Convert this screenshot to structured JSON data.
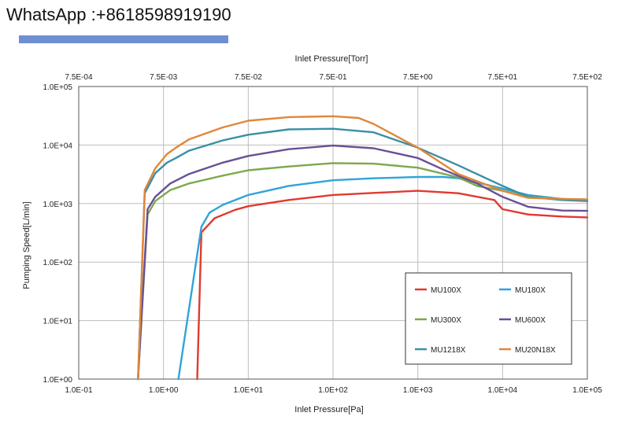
{
  "header": {
    "whatsapp_text": "WhatsApp :+8618598919190"
  },
  "chart_data": {
    "type": "line",
    "title": "",
    "top_axis_label": "Inlet Pressure[Torr]",
    "xlabel": "Inlet Pressure[Pa]",
    "ylabel": "Pumping Speed[L/min]",
    "x_scale": "log",
    "y_scale": "log",
    "xlim": [
      0.1,
      100000
    ],
    "ylim": [
      1,
      100000
    ],
    "grid": true,
    "legend_position": "bottom-right",
    "x_tick_labels": [
      "1.0E-01",
      "1.0E+00",
      "1.0E+01",
      "1.0E+02",
      "1.0E+03",
      "1.0E+04",
      "1.0E+05"
    ],
    "top_tick_labels": [
      "7.5E-04",
      "7.5E-03",
      "7.5E-02",
      "7.5E-01",
      "7.5E+00",
      "7.5E+01",
      "7.5E+02"
    ],
    "y_tick_labels": [
      "1.0E+00",
      "1.0E+01",
      "1.0E+02",
      "1.0E+03",
      "1.0E+04",
      "1.0E+05"
    ],
    "x_ticks": [
      0.1,
      1,
      10,
      100,
      1000,
      10000,
      100000
    ],
    "y_ticks": [
      1,
      10,
      100,
      1000,
      10000,
      100000
    ],
    "series": [
      {
        "name": "MU100X",
        "color": "#e03a2f",
        "x": [
          2.5,
          2.8,
          4,
          7,
          10,
          30,
          100,
          300,
          1000,
          3000,
          8000,
          10000,
          20000,
          50000,
          100000
        ],
        "y": [
          1,
          320,
          560,
          780,
          900,
          1150,
          1400,
          1520,
          1650,
          1500,
          1150,
          800,
          650,
          600,
          580
        ]
      },
      {
        "name": "MU180X",
        "color": "#2fa4d8",
        "x": [
          1.5,
          2.8,
          3.5,
          5,
          10,
          30,
          100,
          300,
          1000,
          2000,
          3000,
          5000,
          10000,
          20000,
          50000,
          100000
        ],
        "y": [
          1,
          400,
          700,
          950,
          1400,
          2000,
          2500,
          2700,
          2850,
          2850,
          2700,
          2300,
          1800,
          1400,
          1200,
          1150
        ]
      },
      {
        "name": "MU300X",
        "color": "#7da84b",
        "x": [
          0.5,
          0.65,
          0.8,
          1.2,
          2,
          5,
          10,
          30,
          100,
          300,
          1000,
          3000,
          5000,
          10000,
          20000,
          50000,
          100000
        ],
        "y": [
          1,
          650,
          1100,
          1700,
          2200,
          3000,
          3700,
          4300,
          4900,
          4800,
          4100,
          2800,
          2000,
          1650,
          1300,
          1200,
          1150
        ]
      },
      {
        "name": "MU600X",
        "color": "#6a4f96",
        "x": [
          0.5,
          0.65,
          0.8,
          1.2,
          2,
          5,
          10,
          30,
          100,
          300,
          1000,
          2000,
          5000,
          10000,
          20000,
          50000,
          100000
        ],
        "y": [
          1,
          800,
          1300,
          2200,
          3200,
          5000,
          6500,
          8500,
          9800,
          8800,
          6000,
          3800,
          2200,
          1300,
          880,
          760,
          750
        ]
      },
      {
        "name": "MU1218X",
        "color": "#3a8fa6",
        "x": [
          0.5,
          0.6,
          0.8,
          1.1,
          1.4,
          2,
          5,
          10,
          30,
          100,
          300,
          1000,
          3000,
          10000,
          20000,
          50000,
          100000
        ],
        "y": [
          1,
          1500,
          3300,
          5000,
          6000,
          8000,
          12000,
          15000,
          18500,
          19000,
          16500,
          9000,
          4500,
          2000,
          1300,
          1150,
          1100
        ]
      },
      {
        "name": "MU20N18X",
        "color": "#e0873a",
        "x": [
          0.5,
          0.6,
          0.8,
          1.1,
          1.4,
          2,
          5,
          10,
          30,
          100,
          200,
          300,
          1000,
          3000,
          10000,
          20000,
          50000,
          100000
        ],
        "y": [
          1,
          1700,
          4000,
          7000,
          9000,
          12500,
          20000,
          26000,
          30000,
          31000,
          29000,
          23000,
          9000,
          3200,
          1650,
          1250,
          1200,
          1180
        ]
      }
    ]
  }
}
